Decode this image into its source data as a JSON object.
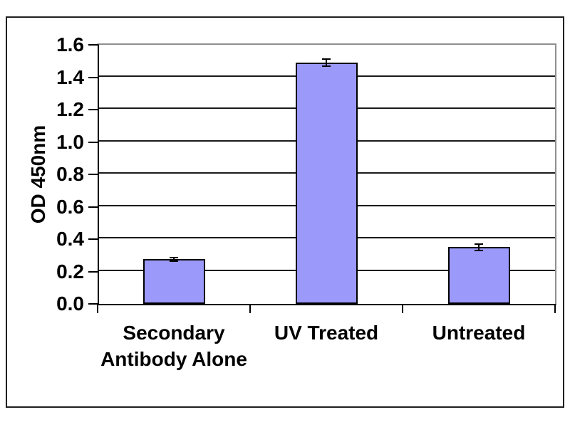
{
  "chart_data": {
    "type": "bar",
    "title": "",
    "ylabel": "OD 450nm",
    "xlabel": "",
    "categories": [
      "Secondary\nAntibody Alone",
      "UV Treated",
      "Untreated"
    ],
    "values": [
      0.275,
      1.49,
      0.35
    ],
    "errors": [
      0.01,
      0.02,
      0.02
    ],
    "ylim": [
      0.0,
      1.6
    ],
    "ytick_interval": 0.2,
    "ytick_labels": [
      "0.0",
      "0.2",
      "0.4",
      "0.6",
      "0.8",
      "1.0",
      "1.2",
      "1.4",
      "1.6"
    ],
    "grid": true,
    "legend": false,
    "colors": {
      "bar_fill": "#9b99fa",
      "bar_border": "#000000",
      "gridline": "#1a1a1a",
      "plot_border": "#8f8f8f",
      "axis": "#000000",
      "error_bar": "#000000",
      "text": "#000000",
      "background": "#ffffff",
      "outer_border": "#1f1f1f"
    }
  }
}
